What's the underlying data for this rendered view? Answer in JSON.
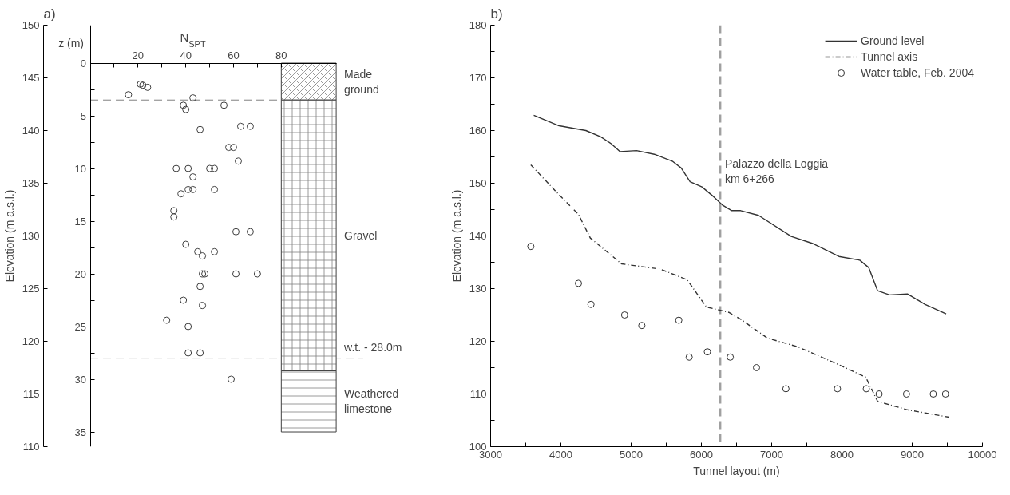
{
  "chart_data": [
    {
      "type": "scatter",
      "title": "a)",
      "xlabel": "N$_{SPT}$",
      "ylabel": "z (m)",
      "y2label": "Elevation (m a.s.l.)",
      "marker": "circle",
      "xlim": [
        0,
        103
      ],
      "xticks": [
        {
          "value": 10,
          "label": null
        },
        20,
        {
          "value": 30,
          "label": null
        },
        40,
        {
          "value": 50,
          "label": null
        },
        60,
        {
          "value": 70,
          "label": null
        },
        80
      ],
      "ylim": [
        36.4,
        -3.6
      ],
      "yticks": [
        0,
        {
          "value": 2.5,
          "label": null
        },
        5,
        {
          "value": 7.5,
          "label": null
        },
        10,
        {
          "value": 12.5,
          "label": null
        },
        15,
        {
          "value": 17.5,
          "label": null
        },
        20,
        {
          "value": 22.5,
          "label": null
        },
        25,
        {
          "value": 27.5,
          "label": null
        },
        30,
        {
          "value": 32.5,
          "label": null
        },
        35
      ],
      "y2lim": [
        110,
        150
      ],
      "y2ticks": [
        110,
        115,
        120,
        125,
        130,
        135,
        140,
        145,
        150
      ],
      "series": [
        {
          "color": "#404040",
          "x": [
            21,
            22,
            24,
            16,
            43,
            39,
            40,
            56,
            46,
            63,
            67,
            58,
            60,
            62,
            36,
            41,
            50,
            52,
            43,
            38,
            41,
            43,
            52,
            35,
            35,
            61,
            67,
            40,
            45,
            47,
            52,
            47,
            48,
            61,
            70,
            46,
            39,
            47,
            32,
            41,
            41,
            46,
            59
          ],
          "values": [
            2.0,
            2.1,
            2.3,
            3.0,
            3.3,
            4.0,
            4.4,
            4.0,
            6.3,
            6.0,
            6.0,
            8.0,
            8.0,
            9.3,
            10,
            10,
            10,
            10,
            10.8,
            12.4,
            12,
            12,
            12,
            14,
            14.6,
            16,
            16,
            17.2,
            17.9,
            18.3,
            17.9,
            20,
            20,
            20,
            20,
            21.2,
            22.5,
            23,
            24.4,
            25,
            27.5,
            27.5,
            30
          ]
        }
      ],
      "ref_lines": [
        {
          "axis": "y",
          "value": 3.5,
          "label": null,
          "color": "#808080",
          "line_style": "dashed"
        },
        {
          "axis": "y",
          "value": 28,
          "label": "w.t. - 28.0m",
          "color": "#808080",
          "line_style": "dashed"
        }
      ],
      "bands": [
        {
          "axis": "y",
          "from": 0,
          "to": 3.5,
          "label": "Made ground",
          "color": "#ffffff"
        },
        {
          "axis": "y",
          "from": 3.5,
          "to": 29.2,
          "label": "Gravel",
          "color": "#ffffff"
        },
        {
          "axis": "y",
          "from": 29.2,
          "to": 35,
          "label": "Weathered limestone",
          "color": "#ffffff"
        }
      ]
    },
    {
      "type": "line",
      "title": "b)",
      "xlabel": "Tunnel layout (m)",
      "ylabel": "Elevation (m a.s.l.)",
      "legend": "top right",
      "xlim": [
        3000,
        10000
      ],
      "xticks": [
        3000,
        {
          "value": 3500,
          "label": null
        },
        4000,
        {
          "value": 4500,
          "label": null
        },
        5000,
        {
          "value": 5500,
          "label": null
        },
        6000,
        {
          "value": 6500,
          "label": null
        },
        7000,
        {
          "value": 7500,
          "label": null
        },
        8000,
        {
          "value": 8500,
          "label": null
        },
        9000,
        {
          "value": 9500,
          "label": null
        },
        10000
      ],
      "ylim": [
        100,
        180
      ],
      "yticks": [
        100,
        {
          "value": 105,
          "label": null
        },
        110,
        {
          "value": 115,
          "label": null
        },
        120,
        {
          "value": 125,
          "label": null
        },
        130,
        {
          "value": 135,
          "label": null
        },
        140,
        {
          "value": 145,
          "label": null
        },
        150,
        {
          "value": 155,
          "label": null
        },
        160,
        {
          "value": 165,
          "label": null
        },
        170,
        {
          "value": 175,
          "label": null
        },
        180
      ],
      "series": [
        {
          "name": "Ground level",
          "type": "line",
          "line_style": "solid",
          "color": "#333333",
          "x": [
            3614,
            3975,
            4356,
            4568,
            4716,
            4843,
            5076,
            5330,
            5585,
            5712,
            5839,
            6008,
            6178,
            6305,
            6432,
            6559,
            6813,
            7279,
            7576,
            7957,
            8254,
            8381,
            8508,
            8678,
            8932,
            9186,
            9483
          ],
          "values": [
            162.9,
            160.9,
            160.0,
            158.8,
            157.5,
            156.0,
            156.2,
            155.5,
            154.2,
            152.9,
            150.3,
            149.3,
            147.4,
            145.8,
            144.8,
            144.8,
            143.9,
            139.9,
            138.6,
            136.1,
            135.4,
            134.0,
            129.6,
            128.8,
            129.0,
            127.0,
            125.2
          ]
        },
        {
          "name": "Tunnel axis",
          "type": "line",
          "line_style": "dashdot",
          "color": "#333333",
          "x": [
            3572,
            3932,
            4250,
            4419,
            4864,
            5415,
            5796,
            6072,
            6390,
            6559,
            6940,
            7364,
            7915,
            8339,
            8508,
            8932,
            9525
          ],
          "values": [
            153.5,
            148.4,
            144.1,
            139.6,
            134.7,
            133.7,
            131.7,
            126.5,
            125.5,
            124.2,
            120.6,
            119.0,
            115.8,
            113.2,
            108.6,
            107.0,
            105.6
          ]
        },
        {
          "name": "Water table, Feb. 2004",
          "type": "scatter",
          "marker": "circle",
          "color": "#333333",
          "x": [
            3572,
            4250,
            4428,
            4907,
            5152,
            5678,
            5826,
            6085,
            6411,
            6784,
            7203,
            7936,
            8347,
            8529,
            8919,
            9300,
            9474
          ],
          "values": [
            138,
            131,
            127,
            125,
            123,
            124,
            117,
            118,
            117,
            115,
            111,
            111,
            111,
            110,
            110,
            110,
            110
          ]
        }
      ],
      "ref_lines": [
        {
          "axis": "x",
          "value": 6266,
          "label": "Palazzo della Loggia\nkm 6+266",
          "color": "#a0a0a0",
          "line_style": "dashed"
        }
      ]
    }
  ]
}
